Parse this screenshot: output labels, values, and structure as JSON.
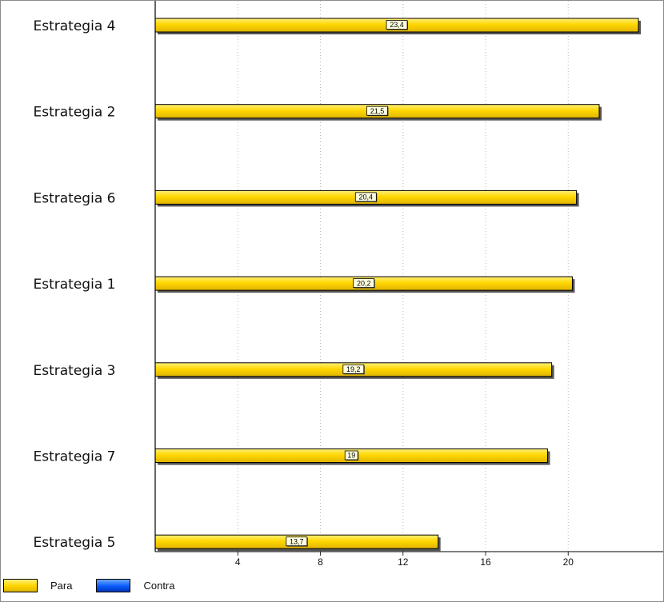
{
  "chart_data": {
    "type": "bar",
    "orientation": "horizontal",
    "categories": [
      "Estrategia 4",
      "Estrategia 2",
      "Estrategia 6",
      "Estrategia 1",
      "Estrategia 3",
      "Estrategia 7",
      "Estrategia 5"
    ],
    "series": [
      {
        "name": "Para",
        "color": "#FFD700",
        "values": [
          23.4,
          21.5,
          20.4,
          20.2,
          19.2,
          19,
          13.7
        ],
        "labels": [
          "23,4",
          "21,5",
          "20,4",
          "20,2",
          "19,2",
          "19",
          "13,7"
        ]
      },
      {
        "name": "Contra",
        "color": "#0A5AFF",
        "values": [
          0,
          0,
          0,
          0,
          0,
          0,
          0
        ]
      }
    ],
    "xticks": [
      4,
      8,
      12,
      16,
      20
    ],
    "xlim": [
      0,
      24.6
    ],
    "title": "",
    "xlabel": "",
    "ylabel": "",
    "grid": "vertical-dotted",
    "legend": "bottom-left"
  }
}
